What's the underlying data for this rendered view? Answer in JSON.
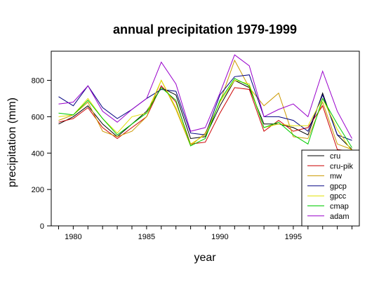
{
  "chart_data": {
    "type": "line",
    "title": "annual precipitation 1979-1999",
    "xlabel": "year",
    "ylabel": "precipitation (mm)",
    "xlim": [
      1978.5,
      1999.5
    ],
    "ylim": [
      0,
      960
    ],
    "x_ticks": [
      1980,
      1985,
      1990,
      1995
    ],
    "y_ticks": [
      0,
      200,
      400,
      600,
      800
    ],
    "grid": false,
    "legend": "bottom-right",
    "x": [
      1979,
      1980,
      1981,
      1982,
      1983,
      1984,
      1985,
      1986,
      1987,
      1988,
      1989,
      1990,
      1991,
      1992,
      1993,
      1994,
      1995,
      1996,
      1997,
      1998,
      1999
    ],
    "series": [
      {
        "name": "cru",
        "color": "#000000",
        "values": [
          560,
          600,
          660,
          560,
          490,
          560,
          630,
          760,
          720,
          480,
          490,
          660,
          800,
          760,
          560,
          560,
          540,
          500,
          730,
          500,
          420
        ]
      },
      {
        "name": "cru-pik",
        "color": "#cc0000",
        "values": [
          570,
          590,
          650,
          540,
          480,
          540,
          600,
          770,
          680,
          450,
          460,
          620,
          760,
          750,
          520,
          580,
          520,
          540,
          660,
          420,
          410
        ]
      },
      {
        "name": "mw",
        "color": "#cc9900",
        "values": [
          580,
          610,
          680,
          520,
          490,
          520,
          600,
          800,
          640,
          440,
          510,
          680,
          910,
          760,
          660,
          730,
          490,
          480,
          680,
          450,
          420
        ]
      },
      {
        "name": "gpcp",
        "color": "#000080",
        "values": [
          710,
          660,
          770,
          650,
          590,
          640,
          700,
          750,
          740,
          510,
          500,
          720,
          820,
          830,
          600,
          600,
          580,
          520,
          720,
          500,
          470
        ]
      },
      {
        "name": "gpcc",
        "color": "#e0e000",
        "values": [
          600,
          610,
          700,
          590,
          510,
          600,
          620,
          800,
          650,
          450,
          500,
          680,
          800,
          780,
          540,
          560,
          550,
          550,
          700,
          530,
          410
        ]
      },
      {
        "name": "cmap",
        "color": "#00cc00",
        "values": [
          620,
          610,
          690,
          590,
          500,
          560,
          620,
          760,
          690,
          440,
          480,
          690,
          810,
          770,
          540,
          570,
          500,
          450,
          700,
          560,
          430
        ]
      },
      {
        "name": "adam",
        "color": "#9900cc",
        "values": [
          670,
          680,
          770,
          630,
          570,
          640,
          700,
          900,
          780,
          520,
          540,
          730,
          940,
          880,
          600,
          640,
          670,
          600,
          850,
          630,
          480
        ]
      }
    ]
  }
}
